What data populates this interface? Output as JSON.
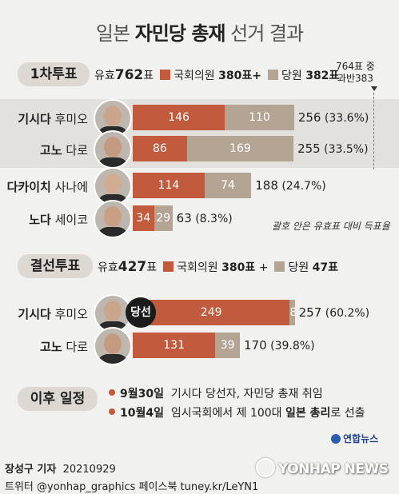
{
  "title": {
    "prefix": "일본",
    "bold": "자민당 총재",
    "suffix": "선거 결과"
  },
  "round1": {
    "label": "1차투표",
    "valid_label": "유효",
    "valid_value": "762",
    "valid_unit": "표",
    "members_label": "국회의원",
    "members_value": "380표+",
    "party_label": "당원",
    "party_value": "382표",
    "majority_line1": "764표 중",
    "majority_line2": "과반383",
    "note": "괄호 안은 유효표 대비 득표율"
  },
  "runoff": {
    "label": "결선투표",
    "valid_label": "유효",
    "valid_value": "427",
    "valid_unit": "표",
    "members_label": "국회의원",
    "members_value": "380표",
    "plus": "+",
    "party_label": "당원",
    "party_value": "47표",
    "winner_badge": "당선"
  },
  "schedule": {
    "label": "이후 일정",
    "items": [
      {
        "date": "9월30일",
        "text": "기시다 당선자, 자민당 총재 취임"
      },
      {
        "date": "10월4일",
        "text_before": "임시국회에서 제 100대",
        "text_bold": "일본 총리",
        "text_after": "로 선출"
      }
    ]
  },
  "footer": {
    "reporter": "장성구 기자",
    "date": "20210929",
    "line2": "트위터 @yonhap_graphics  페이스북 tuney.kr/LeYN1",
    "logo_small": "연합뉴스",
    "logo_big": "YONHAP NEWS"
  },
  "colors": {
    "members": "#c25a3d",
    "party": "#b4a494"
  },
  "chart_data": [
    {
      "type": "bar",
      "title": "1차투표",
      "stacked": true,
      "categories": [
        "기시다 후미오",
        "고노 다로",
        "다카이치 사나에",
        "노다 세이코"
      ],
      "surnames": [
        "기시다",
        "고노",
        "다카이치",
        "노다"
      ],
      "given_names": [
        "후미오",
        "다로",
        "사나에",
        "세이코"
      ],
      "series": [
        {
          "name": "국회의원",
          "values": [
            146,
            86,
            114,
            34
          ]
        },
        {
          "name": "당원",
          "values": [
            110,
            169,
            74,
            29
          ]
        }
      ],
      "totals": [
        256,
        255,
        188,
        63
      ],
      "percents": [
        "(33.6%)",
        "(33.5%)",
        "(24.7%)",
        "(8.3%)"
      ],
      "xlim": [
        0,
        383
      ]
    },
    {
      "type": "bar",
      "title": "결선투표",
      "stacked": true,
      "categories": [
        "기시다 후미오",
        "고노 다로"
      ],
      "surnames": [
        "기시다",
        "고노"
      ],
      "given_names": [
        "후미오",
        "다로"
      ],
      "series": [
        {
          "name": "국회의원",
          "values": [
            249,
            131
          ]
        },
        {
          "name": "당원",
          "values": [
            8,
            39
          ]
        }
      ],
      "totals": [
        257,
        170
      ],
      "percents": [
        "(60.2%)",
        "(39.8%)"
      ],
      "xlim": [
        0,
        383
      ]
    }
  ]
}
